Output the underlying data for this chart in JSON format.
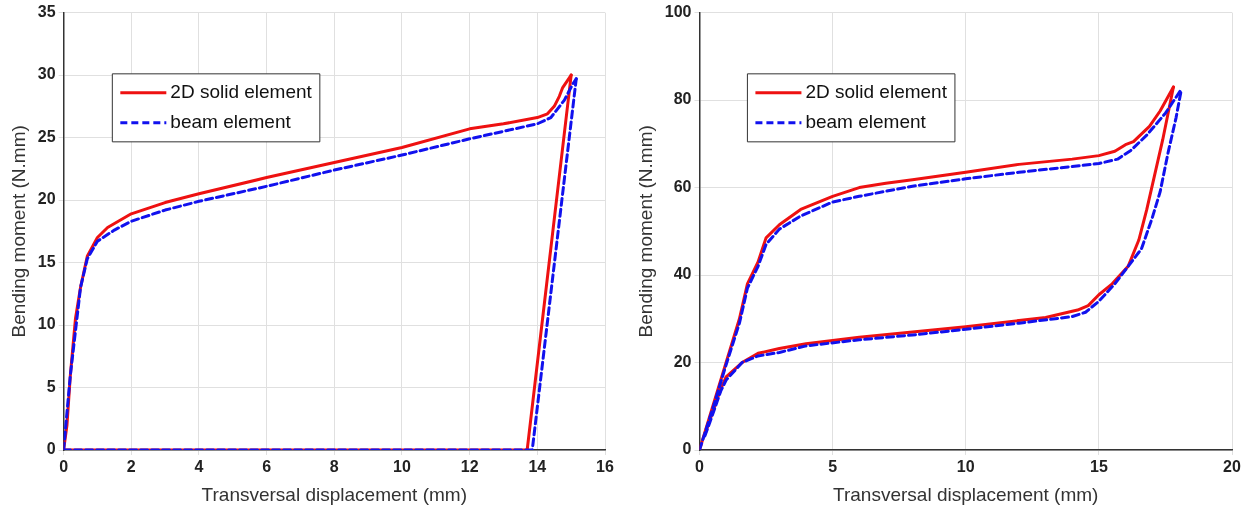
{
  "chart_data": [
    {
      "type": "line",
      "xlabel": "Transversal displacement (mm)",
      "ylabel": "Bending moment (N.mm)",
      "xlim": [
        0,
        16
      ],
      "xticks": [
        0,
        2,
        4,
        6,
        8,
        10,
        12,
        14,
        16
      ],
      "ylim": [
        0,
        35
      ],
      "yticks": [
        0,
        5,
        10,
        15,
        20,
        25,
        30,
        35
      ],
      "grid": true,
      "legend": "top left",
      "marker": "none",
      "series": [
        {
          "name": "2D solid element",
          "color": "#ee1111",
          "line_style": "solid",
          "x": [
            0,
            0.1,
            0.2,
            0.35,
            0.5,
            0.7,
            1,
            1.3,
            2,
            3,
            4,
            6,
            8,
            10,
            12,
            13,
            14,
            14.3,
            14.5,
            14.65,
            14.75,
            15
          ],
          "values": [
            0,
            2,
            6,
            10.5,
            13,
            15.5,
            17,
            17.8,
            18.9,
            19.8,
            20.5,
            21.8,
            23,
            24.2,
            25.7,
            26.1,
            26.6,
            26.9,
            27.5,
            28.3,
            29,
            30
          ]
        },
        {
          "color": "#ee1111",
          "line_style": "solid",
          "x": [
            0,
            13.7,
            15
          ],
          "values": [
            0,
            0,
            30
          ]
        },
        {
          "name": "beam element",
          "color": "#1111ee",
          "line_style": "dashed",
          "x": [
            0,
            0.2,
            0.5,
            0.7,
            1,
            1.5,
            2,
            3,
            4,
            6,
            8,
            10,
            12,
            14,
            14.4,
            14.8,
            15.05,
            15.15
          ],
          "values": [
            0,
            6,
            13,
            15.3,
            16.7,
            17.6,
            18.3,
            19.2,
            19.9,
            21.1,
            22.4,
            23.6,
            24.9,
            26.1,
            26.6,
            28,
            29.3,
            29.7
          ]
        },
        {
          "color": "#1111ee",
          "line_style": "dashed",
          "x": [
            0,
            13.85,
            15.15
          ],
          "values": [
            0,
            0,
            29.7
          ]
        }
      ]
    },
    {
      "type": "line",
      "xlabel": "Transversal displacement (mm)",
      "ylabel": "Bending moment (N.mm)",
      "xlim": [
        0,
        20
      ],
      "xticks": [
        0,
        5,
        10,
        15,
        20
      ],
      "ylim": [
        0,
        100
      ],
      "yticks": [
        0,
        20,
        40,
        60,
        80,
        100
      ],
      "grid": true,
      "legend": "top left",
      "marker": "none",
      "series": [
        {
          "name": "2D solid element",
          "color": "#ee1111",
          "line_style": "solid",
          "x": [
            0,
            0.5,
            1,
            1.5,
            1.8,
            2.2,
            2.5,
            3,
            3.8,
            5,
            6,
            7,
            8,
            10,
            12,
            14,
            15,
            15.6,
            16,
            16.3,
            16.9,
            17.3,
            17.8
          ],
          "values": [
            0,
            10,
            20,
            30,
            38,
            43,
            48.5,
            51.5,
            55,
            58,
            60,
            61,
            61.8,
            63.5,
            65.3,
            66.5,
            67.3,
            68.3,
            69.8,
            70.5,
            74,
            77.5,
            83
          ]
        },
        {
          "color": "#ee1111",
          "line_style": "solid",
          "x": [
            0.2,
            0.4,
            0.8,
            1,
            1.6,
            2.2,
            3,
            4,
            6,
            8,
            10,
            12,
            13,
            14.2,
            14.6,
            15,
            15.5,
            16.1,
            16.5,
            16.8,
            17.1,
            17.4,
            17.8
          ],
          "values": [
            3.5,
            7,
            14,
            16.7,
            20,
            22.1,
            23.2,
            24.3,
            25.8,
            27,
            28.2,
            29.6,
            30.3,
            32,
            33,
            35.5,
            38,
            42,
            48,
            55,
            63,
            71,
            83
          ]
        },
        {
          "name": "beam element",
          "color": "#1111ee",
          "line_style": "dashed",
          "x": [
            0,
            0.5,
            1,
            1.5,
            1.8,
            2.2,
            2.5,
            3,
            3.8,
            5,
            6,
            8,
            10,
            12,
            14,
            15,
            15.7,
            16.2,
            16.8,
            17.5,
            18.1
          ],
          "values": [
            0,
            9.5,
            19.5,
            29,
            37,
            42,
            47,
            50.5,
            53.5,
            56.7,
            58,
            60.3,
            62,
            63.5,
            64.8,
            65.5,
            66.5,
            68.5,
            72,
            77,
            82.5
          ]
        },
        {
          "color": "#1111ee",
          "line_style": "dashed",
          "x": [
            0.2,
            0.4,
            0.8,
            1,
            1.6,
            2.2,
            3,
            4,
            6,
            8,
            10,
            12,
            14,
            14.5,
            15,
            15.6,
            16.1,
            16.6,
            17,
            17.3,
            17.6,
            17.9,
            18.1
          ],
          "values": [
            3.2,
            6.5,
            13.5,
            16,
            20,
            21.5,
            22.3,
            23.8,
            25.2,
            26.3,
            27.6,
            29,
            30.5,
            31.5,
            34,
            38,
            42,
            46,
            53,
            59,
            68,
            76,
            82.5
          ]
        }
      ]
    }
  ]
}
